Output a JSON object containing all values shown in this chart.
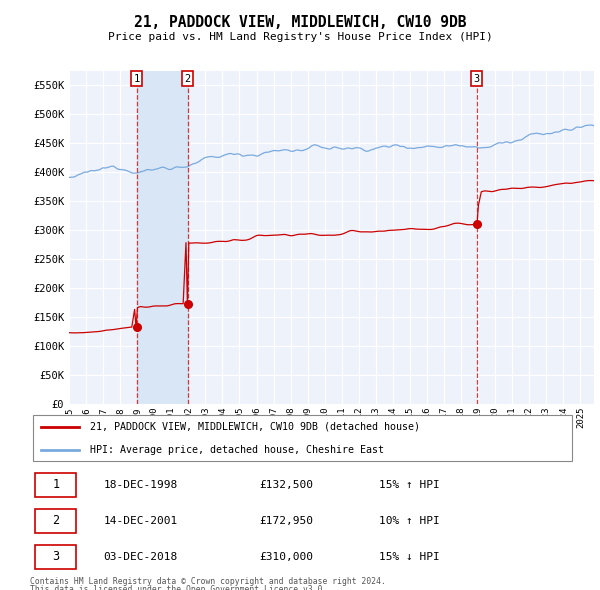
{
  "title": "21, PADDOCK VIEW, MIDDLEWICH, CW10 9DB",
  "subtitle": "Price paid vs. HM Land Registry's House Price Index (HPI)",
  "legend_line1": "21, PADDOCK VIEW, MIDDLEWICH, CW10 9DB (detached house)",
  "legend_line2": "HPI: Average price, detached house, Cheshire East",
  "footer1": "Contains HM Land Registry data © Crown copyright and database right 2024.",
  "footer2": "This data is licensed under the Open Government Licence v3.0.",
  "transactions": [
    {
      "num": 1,
      "date": "18-DEC-1998",
      "price": "£132,500",
      "hpi_note": "15% ↑ HPI",
      "year": 1998.96,
      "price_val": 132500
    },
    {
      "num": 2,
      "date": "14-DEC-2001",
      "price": "£172,950",
      "hpi_note": "10% ↑ HPI",
      "year": 2001.96,
      "price_val": 172950
    },
    {
      "num": 3,
      "date": "03-DEC-2018",
      "price": "£310,000",
      "hpi_note": "15% ↓ HPI",
      "year": 2018.92,
      "price_val": 310000
    }
  ],
  "ylim": [
    0,
    575000
  ],
  "yticks": [
    0,
    50000,
    100000,
    150000,
    200000,
    250000,
    300000,
    350000,
    400000,
    450000,
    500000,
    550000
  ],
  "ytick_labels": [
    "£0",
    "£50K",
    "£100K",
    "£150K",
    "£200K",
    "£250K",
    "£300K",
    "£350K",
    "£400K",
    "£450K",
    "£500K",
    "£550K"
  ],
  "xlim_start": 1995.0,
  "xlim_end": 2025.8,
  "bg_color": "#eef2fb",
  "grid_color": "#ffffff",
  "line_color_red": "#cc0000",
  "line_color_blue": "#7aaadd",
  "vline_color": "#cc0000",
  "shade_color": "#d8e6f5",
  "dot_color": "#cc0000",
  "box_border_color": "#cc0000"
}
